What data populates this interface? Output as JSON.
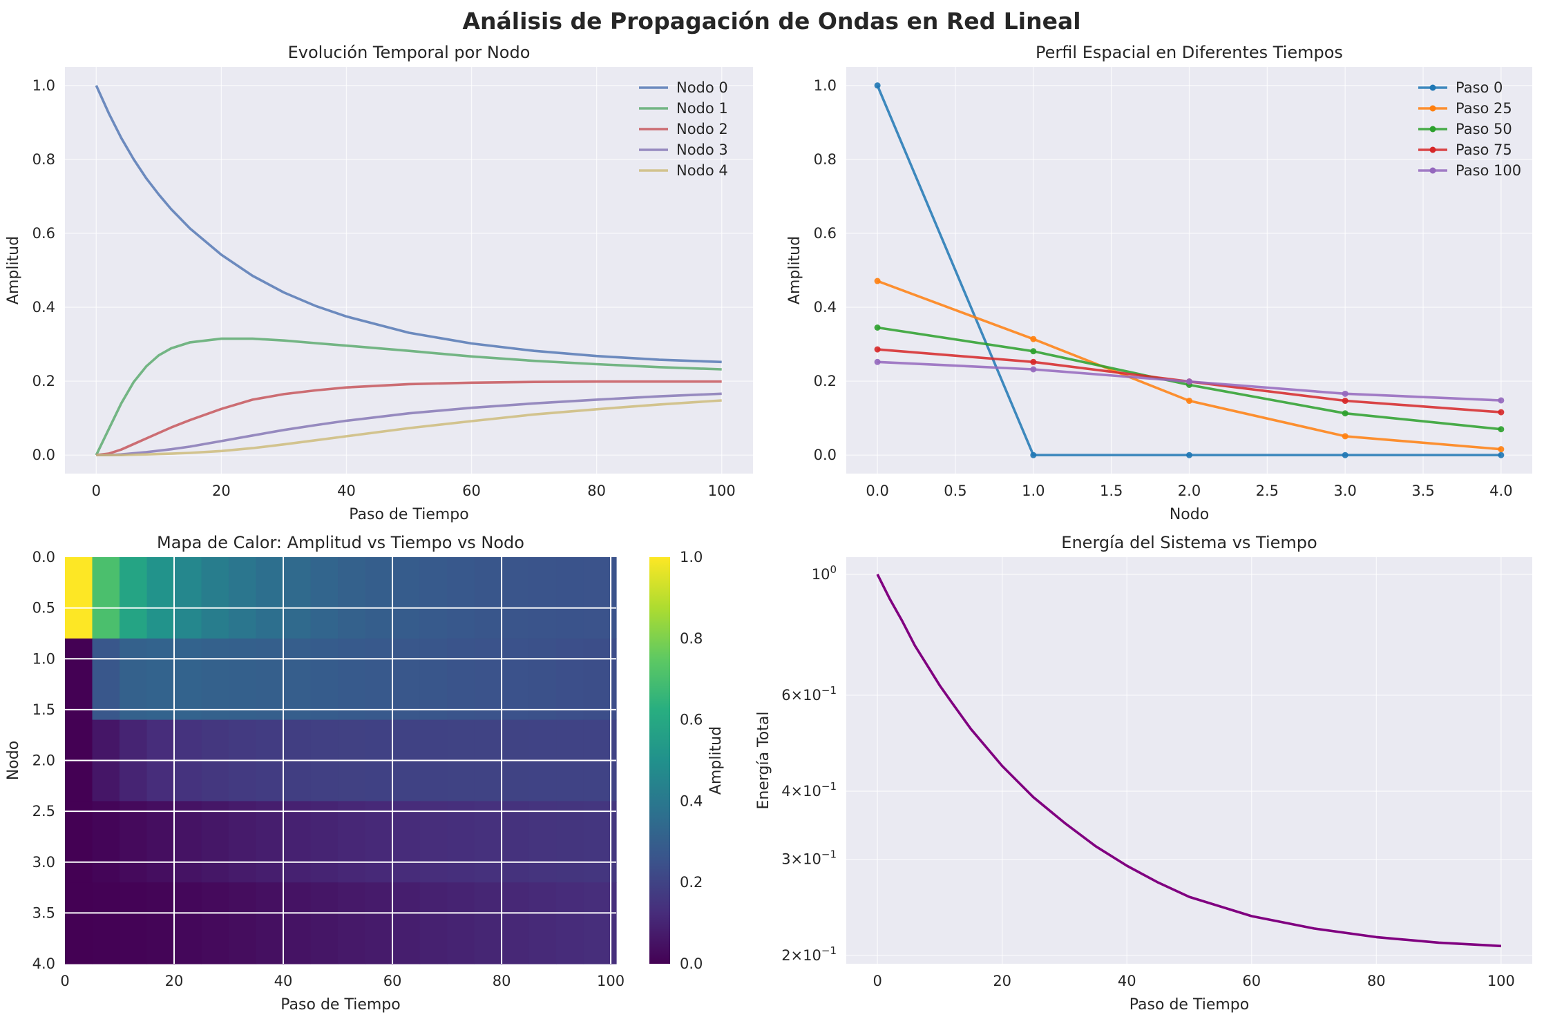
{
  "figure": {
    "suptitle": "Análisis de Propagación de Ondas en Red Lineal"
  },
  "chart_data": [
    {
      "id": "temporal",
      "type": "line",
      "title": "Evolución Temporal por Nodo",
      "xlabel": "Paso de Tiempo",
      "ylabel": "Amplitud",
      "xlim": [
        -5,
        105
      ],
      "ylim": [
        -0.05,
        1.05
      ],
      "xticks": [
        0,
        20,
        40,
        60,
        80,
        100
      ],
      "yticks": [
        0.0,
        0.2,
        0.4,
        0.6,
        0.8,
        1.0
      ],
      "xtick_labels": [
        "0",
        "20",
        "40",
        "60",
        "80",
        "100"
      ],
      "ytick_labels": [
        "0.0",
        "0.2",
        "0.4",
        "0.6",
        "0.8",
        "1.0"
      ],
      "grid": true,
      "legend": "top-right",
      "x": [
        0,
        2,
        4,
        6,
        8,
        10,
        12,
        15,
        20,
        25,
        30,
        35,
        40,
        50,
        60,
        70,
        80,
        90,
        100
      ],
      "series": [
        {
          "name": "Nodo 0",
          "color": "#4c72b0",
          "values": [
            1.0,
            0.925,
            0.858,
            0.8,
            0.749,
            0.705,
            0.665,
            0.613,
            0.542,
            0.485,
            0.44,
            0.404,
            0.375,
            0.331,
            0.302,
            0.282,
            0.268,
            0.258,
            0.252
          ]
        },
        {
          "name": "Nodo 1",
          "color": "#55a868",
          "values": [
            0.0,
            0.07,
            0.14,
            0.198,
            0.24,
            0.27,
            0.289,
            0.305,
            0.315,
            0.315,
            0.31,
            0.303,
            0.296,
            0.282,
            0.267,
            0.255,
            0.246,
            0.238,
            0.232
          ]
        },
        {
          "name": "Nodo 2",
          "color": "#c44e52",
          "values": [
            0.0,
            0.004,
            0.015,
            0.03,
            0.045,
            0.06,
            0.075,
            0.095,
            0.125,
            0.15,
            0.165,
            0.175,
            0.183,
            0.192,
            0.196,
            0.198,
            0.199,
            0.199,
            0.199
          ]
        },
        {
          "name": "Nodo 3",
          "color": "#8172b2",
          "values": [
            0.0,
            0.0,
            0.002,
            0.005,
            0.008,
            0.012,
            0.016,
            0.023,
            0.038,
            0.053,
            0.068,
            0.081,
            0.093,
            0.113,
            0.128,
            0.14,
            0.15,
            0.159,
            0.166
          ]
        },
        {
          "name": "Nodo 4",
          "color": "#ccb974",
          "values": [
            0.0,
            0.0,
            0.0,
            0.001,
            0.002,
            0.003,
            0.004,
            0.006,
            0.011,
            0.019,
            0.029,
            0.04,
            0.051,
            0.073,
            0.092,
            0.11,
            0.124,
            0.137,
            0.148
          ]
        }
      ]
    },
    {
      "id": "spatial",
      "type": "line",
      "title": "Perfil Espacial en Diferentes Tiempos",
      "xlabel": "Nodo",
      "ylabel": "Amplitud",
      "xlim": [
        -0.2,
        4.2
      ],
      "ylim": [
        -0.05,
        1.05
      ],
      "xticks": [
        0.0,
        0.5,
        1.0,
        1.5,
        2.0,
        2.5,
        3.0,
        3.5,
        4.0
      ],
      "yticks": [
        0.0,
        0.2,
        0.4,
        0.6,
        0.8,
        1.0
      ],
      "xtick_labels": [
        "0.0",
        "0.5",
        "1.0",
        "1.5",
        "2.0",
        "2.5",
        "3.0",
        "3.5",
        "4.0"
      ],
      "ytick_labels": [
        "0.0",
        "0.2",
        "0.4",
        "0.6",
        "0.8",
        "1.0"
      ],
      "grid": true,
      "legend": "top-right",
      "x": [
        0,
        1,
        2,
        3,
        4
      ],
      "series": [
        {
          "name": "Paso 0",
          "color": "#1f77b4",
          "values": [
            1.0,
            0.0,
            0.0,
            0.0,
            0.0
          ]
        },
        {
          "name": "Paso 25",
          "color": "#ff7f0e",
          "values": [
            0.471,
            0.314,
            0.147,
            0.051,
            0.016
          ]
        },
        {
          "name": "Paso 50",
          "color": "#2ca02c",
          "values": [
            0.345,
            0.281,
            0.19,
            0.113,
            0.07
          ]
        },
        {
          "name": "Paso 75",
          "color": "#d62728",
          "values": [
            0.286,
            0.252,
            0.199,
            0.147,
            0.116
          ]
        },
        {
          "name": "Paso 100",
          "color": "#9467bd",
          "values": [
            0.252,
            0.232,
            0.199,
            0.166,
            0.148
          ]
        }
      ]
    },
    {
      "id": "heatmap",
      "type": "heatmap",
      "title": "Mapa de Calor: Amplitud vs Tiempo vs Nodo",
      "xlabel": "Paso de Tiempo",
      "ylabel": "Nodo",
      "colorbar_label": "Amplitud",
      "colormap": "viridis",
      "clim": [
        0.0,
        1.0
      ],
      "xlim": [
        0,
        101
      ],
      "ylim": [
        4.0,
        0.0
      ],
      "xticks": [
        0,
        20,
        40,
        60,
        80,
        100
      ],
      "yticks": [
        0.0,
        0.5,
        1.0,
        1.5,
        2.0,
        2.5,
        3.0,
        3.5,
        4.0
      ],
      "xtick_labels": [
        "0",
        "20",
        "40",
        "60",
        "80",
        "100"
      ],
      "ytick_labels": [
        "0.0",
        "0.5",
        "1.0",
        "1.5",
        "2.0",
        "2.5",
        "3.0",
        "3.5",
        "4.0"
      ],
      "cbar_ticks": [
        0.0,
        0.2,
        0.4,
        0.6,
        0.8,
        1.0
      ],
      "cbar_tick_labels": [
        "0.0",
        "0.2",
        "0.4",
        "0.6",
        "0.8",
        "1.0"
      ],
      "column_starts": [
        0,
        5,
        10,
        15,
        20,
        25,
        30,
        35,
        40,
        45,
        50,
        55,
        60,
        65,
        70,
        75,
        80,
        85,
        90,
        95,
        100
      ],
      "row_edges": [
        0.0,
        0.8,
        1.6,
        2.4,
        3.2,
        4.0
      ],
      "rows": [
        [
          1.0,
          0.705,
          0.58,
          0.51,
          0.46,
          0.42,
          0.39,
          0.365,
          0.345,
          0.325,
          0.31,
          0.298,
          0.288,
          0.28,
          0.273,
          0.267,
          0.262,
          0.258,
          0.255,
          0.253,
          0.252
        ],
        [
          0.0,
          0.27,
          0.31,
          0.315,
          0.315,
          0.31,
          0.305,
          0.3,
          0.295,
          0.29,
          0.283,
          0.276,
          0.27,
          0.264,
          0.259,
          0.254,
          0.249,
          0.245,
          0.241,
          0.238,
          0.234
        ],
        [
          0.0,
          0.06,
          0.1,
          0.125,
          0.145,
          0.16,
          0.17,
          0.177,
          0.183,
          0.188,
          0.191,
          0.194,
          0.196,
          0.197,
          0.198,
          0.199,
          0.199,
          0.2,
          0.2,
          0.2,
          0.2
        ],
        [
          0.0,
          0.012,
          0.025,
          0.038,
          0.05,
          0.062,
          0.073,
          0.083,
          0.092,
          0.1,
          0.108,
          0.115,
          0.121,
          0.127,
          0.133,
          0.138,
          0.143,
          0.148,
          0.152,
          0.156,
          0.16
        ],
        [
          0.0,
          0.003,
          0.006,
          0.011,
          0.018,
          0.025,
          0.033,
          0.042,
          0.05,
          0.059,
          0.067,
          0.075,
          0.083,
          0.09,
          0.097,
          0.104,
          0.11,
          0.116,
          0.122,
          0.127,
          0.132
        ]
      ]
    },
    {
      "id": "energy",
      "type": "line",
      "title": "Energía del Sistema vs Tiempo",
      "xlabel": "Paso de Tiempo",
      "ylabel": "Energía Total",
      "scale_y": "log",
      "xlim": [
        -5,
        105
      ],
      "ylim": [
        0.193,
        1.075
      ],
      "xticks": [
        0,
        20,
        40,
        60,
        80,
        100
      ],
      "xtick_labels": [
        "0",
        "20",
        "40",
        "60",
        "80",
        "100"
      ],
      "yticks": [
        1.0,
        0.6,
        0.4,
        0.3,
        0.2
      ],
      "ytick_labels": [
        {
          "base": "10",
          "sup": "0"
        },
        {
          "base": "6×10",
          "sup": "−1"
        },
        {
          "base": "4×10",
          "sup": "−1"
        },
        {
          "base": "3×10",
          "sup": "−1"
        },
        {
          "base": "2×10",
          "sup": "−1"
        }
      ],
      "grid": true,
      "legend": "none",
      "series": [
        {
          "name": "",
          "color": "#800080",
          "x": [
            0,
            2,
            4,
            6,
            8,
            10,
            12,
            15,
            20,
            25,
            30,
            35,
            40,
            45,
            50,
            60,
            70,
            80,
            90,
            100
          ],
          "values": [
            1.0,
            0.9,
            0.82,
            0.74,
            0.68,
            0.625,
            0.58,
            0.52,
            0.445,
            0.39,
            0.35,
            0.317,
            0.292,
            0.272,
            0.256,
            0.236,
            0.224,
            0.216,
            0.211,
            0.208
          ]
        }
      ]
    }
  ]
}
